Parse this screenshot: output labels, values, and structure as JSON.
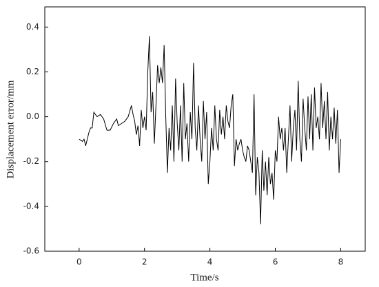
{
  "chart_data": {
    "type": "line",
    "x_label": "Time/s",
    "y_label": "Displacement error/mm",
    "x": [
      0,
      0.1,
      0.15,
      0.2,
      0.3,
      0.35,
      0.4,
      0.45,
      0.55,
      0.65,
      0.75,
      0.85,
      0.95,
      1.05,
      1.15,
      1.2,
      1.3,
      1.4,
      1.5,
      1.6,
      1.65,
      1.7,
      1.75,
      1.8,
      1.85,
      1.9,
      1.95,
      2.0,
      2.05,
      2.1,
      2.15,
      2.2,
      2.25,
      2.3,
      2.35,
      2.4,
      2.45,
      2.5,
      2.55,
      2.6,
      2.65,
      2.7,
      2.75,
      2.8,
      2.85,
      2.9,
      2.95,
      3.0,
      3.05,
      3.1,
      3.15,
      3.2,
      3.25,
      3.3,
      3.35,
      3.4,
      3.45,
      3.5,
      3.55,
      3.6,
      3.65,
      3.7,
      3.75,
      3.8,
      3.85,
      3.9,
      3.95,
      4.0,
      4.05,
      4.1,
      4.15,
      4.2,
      4.25,
      4.3,
      4.35,
      4.4,
      4.45,
      4.5,
      4.55,
      4.6,
      4.65,
      4.7,
      4.75,
      4.8,
      4.85,
      4.9,
      4.95,
      5.0,
      5.05,
      5.1,
      5.15,
      5.2,
      5.25,
      5.3,
      5.35,
      5.4,
      5.45,
      5.5,
      5.55,
      5.6,
      5.65,
      5.7,
      5.75,
      5.8,
      5.85,
      5.9,
      5.95,
      6.0,
      6.05,
      6.1,
      6.15,
      6.2,
      6.25,
      6.3,
      6.35,
      6.4,
      6.45,
      6.5,
      6.55,
      6.6,
      6.65,
      6.7,
      6.75,
      6.8,
      6.85,
      6.9,
      6.95,
      7.0,
      7.05,
      7.1,
      7.15,
      7.2,
      7.25,
      7.3,
      7.35,
      7.4,
      7.45,
      7.5,
      7.55,
      7.6,
      7.65,
      7.7,
      7.75,
      7.8,
      7.85,
      7.9,
      7.95,
      8.0
    ],
    "series": [
      {
        "color": "#000000",
        "values": [
          -0.1,
          -0.11,
          -0.1,
          -0.13,
          -0.07,
          -0.05,
          -0.05,
          0.02,
          0.0,
          0.01,
          -0.01,
          -0.06,
          -0.06,
          -0.03,
          -0.01,
          -0.04,
          -0.03,
          -0.02,
          0.0,
          0.05,
          0.01,
          -0.02,
          -0.08,
          -0.04,
          -0.13,
          0.03,
          -0.05,
          0.0,
          -0.06,
          0.2,
          0.36,
          0.02,
          0.11,
          -0.12,
          0.05,
          0.23,
          0.15,
          0.22,
          0.15,
          0.32,
          0.0,
          -0.25,
          -0.05,
          -0.15,
          0.05,
          -0.2,
          0.17,
          -0.03,
          -0.15,
          0.05,
          -0.2,
          0.15,
          -0.1,
          -0.03,
          -0.2,
          0.02,
          -0.1,
          0.24,
          -0.05,
          -0.15,
          0.05,
          -0.1,
          -0.2,
          0.07,
          -0.1,
          0.02,
          -0.3,
          -0.2,
          -0.05,
          -0.15,
          0.05,
          -0.1,
          -0.15,
          0.03,
          -0.08,
          0.0,
          -0.1,
          0.05,
          -0.02,
          -0.05,
          0.05,
          0.1,
          -0.22,
          -0.1,
          -0.15,
          -0.12,
          -0.1,
          -0.15,
          -0.18,
          -0.2,
          -0.13,
          -0.15,
          -0.2,
          -0.25,
          0.1,
          -0.35,
          -0.18,
          -0.25,
          -0.48,
          -0.15,
          -0.33,
          -0.2,
          -0.35,
          -0.18,
          -0.3,
          -0.25,
          -0.37,
          -0.15,
          -0.2,
          0.0,
          -0.1,
          -0.05,
          -0.15,
          -0.05,
          -0.25,
          -0.1,
          0.05,
          -0.2,
          -0.05,
          0.03,
          -0.15,
          0.16,
          -0.1,
          -0.2,
          0.08,
          -0.05,
          -0.15,
          0.09,
          -0.1,
          0.1,
          -0.15,
          0.13,
          -0.05,
          0.0,
          -0.1,
          0.15,
          -0.05,
          0.07,
          -0.1,
          0.11,
          -0.15,
          0.0,
          -0.1,
          0.04,
          -0.12,
          0.03,
          -0.25,
          -0.1
        ]
      }
    ],
    "xlim": [
      -1.05,
      8.75
    ],
    "ylim": [
      -0.6,
      0.49
    ],
    "xticks": [
      0,
      2,
      4,
      6,
      8
    ],
    "yticks": [
      -0.6,
      -0.4,
      -0.2,
      {
        "value": 0,
        "label": "0.0"
      },
      0.2,
      0.4
    ]
  }
}
